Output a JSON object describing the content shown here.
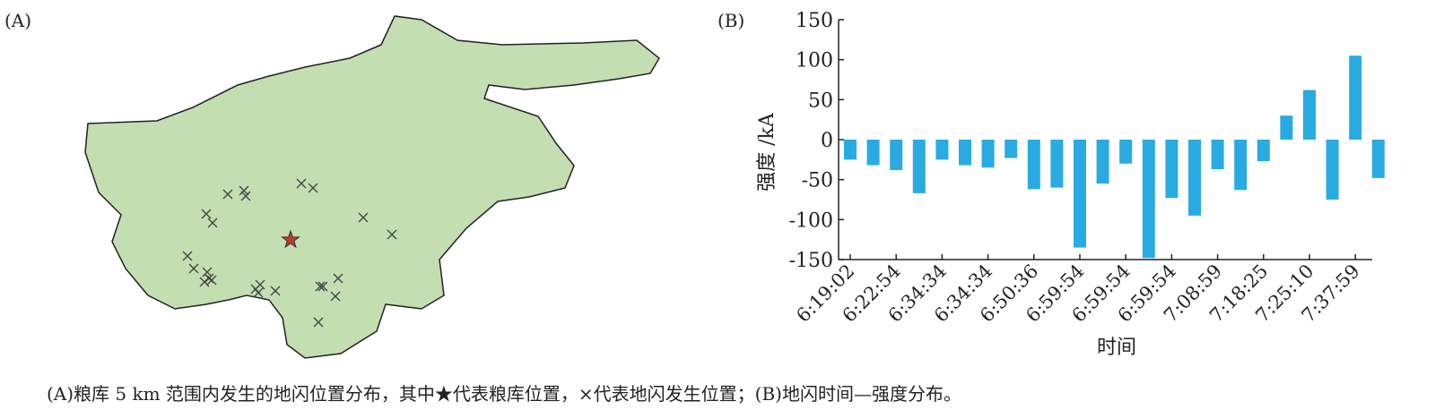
{
  "panel_a": {
    "label": "(A)"
  },
  "chart_data": {
    "type": "bar",
    "panel_label": "(B)",
    "xlabel": "时间",
    "ylabel": "强度 /kA",
    "color": "#29abe2",
    "categories": [
      "6:19:02",
      null,
      "6:22:54",
      null,
      "6:34:34",
      null,
      "6:34:34",
      null,
      "6:50:36",
      null,
      "6:59:54",
      null,
      "6:59:54",
      null,
      "6:59:54",
      null,
      "7:08:59",
      null,
      "7:18:25",
      null,
      "7:25:10",
      null,
      "7:37:59",
      null
    ],
    "values": [
      -25,
      -32,
      -38,
      -67,
      -25,
      -32,
      -35,
      -23,
      -62,
      -60,
      -135,
      -55,
      -30,
      -148,
      -73,
      -95,
      -37,
      -63,
      -27,
      30,
      62,
      -75,
      105,
      -48
    ],
    "ylim": [
      -150,
      150
    ],
    "yticks": [
      -150,
      -100,
      -50,
      0,
      50,
      100,
      150
    ],
    "grid": false
  },
  "caption": "(A)粮库 5 km 范围内发生的地闪位置分布，其中★代表粮库位置，×代表地闪发生位置；(B)地闪时间—强度分布。"
}
